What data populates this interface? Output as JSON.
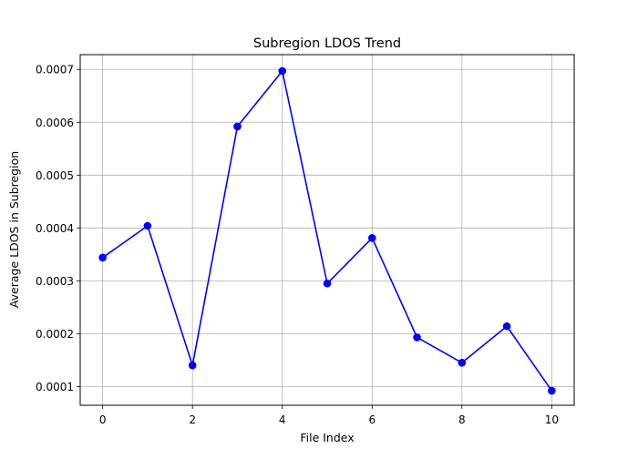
{
  "chart_data": {
    "type": "line",
    "title": "Subregion LDOS Trend",
    "xlabel": "File Index",
    "ylabel": "Average LDOS in Subregion",
    "x": [
      0,
      1,
      2,
      3,
      4,
      5,
      6,
      7,
      8,
      9,
      10
    ],
    "series": [
      {
        "values": [
          0.000344,
          0.000404,
          0.00014,
          0.000592,
          0.000697,
          0.000295,
          0.000381,
          0.000193,
          0.000145,
          0.000214,
          9.2e-05
        ],
        "color": "#0000ff",
        "marker": "circle"
      }
    ],
    "xlim": [
      -0.5,
      10.5
    ],
    "ylim": [
      6.45e-05,
      0.000728
    ],
    "xticks": [
      0,
      2,
      4,
      6,
      8,
      10
    ],
    "xtick_labels": [
      "0",
      "2",
      "4",
      "6",
      "8",
      "10"
    ],
    "yticks": [
      0.0001,
      0.0002,
      0.0003,
      0.0004,
      0.0005,
      0.0006,
      0.0007
    ],
    "ytick_labels": [
      "0.0001",
      "0.0002",
      "0.0003",
      "0.0004",
      "0.0005",
      "0.0006",
      "0.0007"
    ],
    "grid": true
  }
}
